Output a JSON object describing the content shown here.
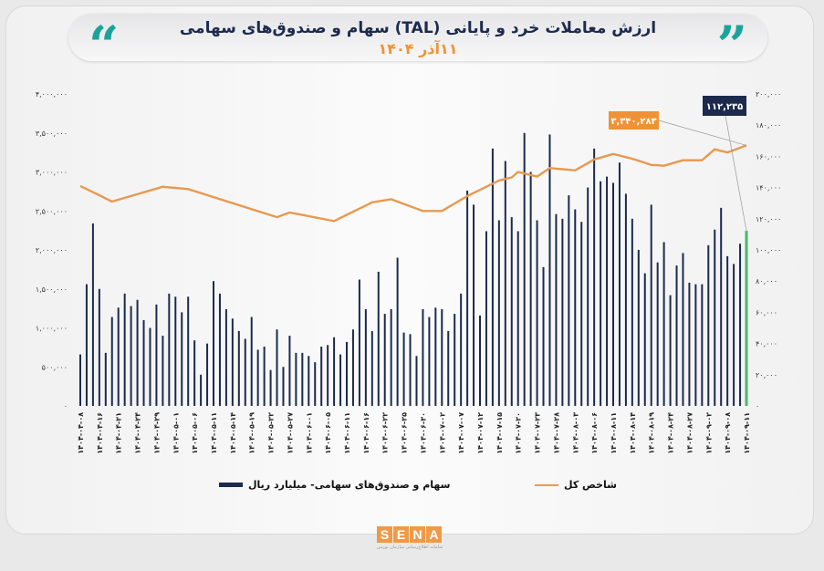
{
  "header": {
    "title": "ارزش معاملات خرد و پایانی (TAL) سهام و صندوق‌های سهامی",
    "subtitle": "۱۱آذر ۱۴۰۴",
    "quote_left": "“",
    "quote_right": "”"
  },
  "logo": {
    "letters": [
      "S",
      "E",
      "N",
      "A"
    ],
    "tagline": "سامانه اطلاع‌رسانی سازمان بورس"
  },
  "colors": {
    "bars": "#1c2a4d",
    "last_bar": "#4cb86a",
    "line": "#e8994f",
    "callout_line": "#ef9235",
    "callout_bar": "#1c2a4d"
  },
  "chart_data": {
    "type": "bar+line",
    "title": "ارزش معاملات خرد و پایانی (TAL) سهام و صندوق‌های سهامی",
    "left_axis": {
      "range": [
        0,
        4000000
      ],
      "ticks": [
        "۰",
        "۵۰۰,۰۰۰",
        "۱,۰۰۰,۰۰۰",
        "۱,۵۰۰,۰۰۰",
        "۲,۰۰۰,۰۰۰",
        "۲,۵۰۰,۰۰۰",
        "۳,۰۰۰,۰۰۰",
        "۳,۵۰۰,۰۰۰",
        "۴,۰۰۰,۰۰۰"
      ]
    },
    "right_axis": {
      "range": [
        0,
        200000
      ],
      "ticks": [
        "۰",
        "۲۰,۰۰۰",
        "۴۰,۰۰۰",
        "۶۰,۰۰۰",
        "۸۰,۰۰۰",
        "۱۰۰,۰۰۰",
        "۱۲۰,۰۰۰",
        "۱۴۰,۰۰۰",
        "۱۶۰,۰۰۰",
        "۱۸۰,۰۰۰",
        "۲۰۰,۰۰۰"
      ]
    },
    "x_labels": [
      "۱۴۰۴-۰۴-۰۸",
      "۱۴۰۴-۰۴-۱۶",
      "۱۴۰۴-۰۴-۲۱",
      "۱۴۰۴-۰۴-۲۴",
      "۱۴۰۴-۰۴-۲۹",
      "۱۴۰۴-۰۵-۰۱",
      "۱۴۰۴-۰۵-۰۶",
      "۱۴۰۴-۰۵-۱۱",
      "۱۴۰۴-۰۵-۱۴",
      "۱۴۰۴-۰۵-۱۹",
      "۱۴۰۴-۰۵-۲۲",
      "۱۴۰۴-۰۵-۲۷",
      "۱۴۰۴-۰۶-۰۱",
      "۱۴۰۴-۰۶-۰۵",
      "۱۴۰۴-۰۶-۱۱",
      "۱۴۰۴-۰۶-۱۶",
      "۱۴۰۴-۰۶-۲۲",
      "۱۴۰۴-۰۶-۲۵",
      "۱۴۰۴-۰۶-۳۰",
      "۱۴۰۴-۰۷-۰۲",
      "۱۴۰۴-۰۷-۰۷",
      "۱۴۰۴-۰۷-۱۲",
      "۱۴۰۴-۰۷-۱۵",
      "۱۴۰۴-۰۷-۲۰",
      "۱۴۰۴-۰۷-۲۳",
      "۱۴۰۴-۰۷-۲۸",
      "۱۴۰۴-۰۸-۰۳",
      "۱۴۰۴-۰۸-۰۶",
      "۱۴۰۴-۰۸-۱۱",
      "۱۴۰۴-۰۸-۱۴",
      "۱۴۰۴-۰۸-۱۹",
      "۱۴۰۴-۰۸-۲۴",
      "۱۴۰۴-۰۸-۲۷",
      "۱۴۰۴-۰۹-۰۲",
      "۱۴۰۴-۰۹-۰۸",
      "۱۴۰۴-۰۹-۱۱"
    ],
    "x_label_every": 3,
    "series": [
      {
        "name": "سهام و صندوق‌های سهامی - میلیارد ریال",
        "type": "bar",
        "axis": "right",
        "values": [
          33000,
          78000,
          117000,
          75000,
          34000,
          57000,
          63000,
          72000,
          64000,
          68000,
          55000,
          50000,
          65000,
          45000,
          72000,
          70000,
          60000,
          70000,
          42000,
          20000,
          40000,
          80000,
          72000,
          62000,
          56000,
          48000,
          43000,
          57000,
          36000,
          38000,
          23000,
          49000,
          25000,
          45000,
          34000,
          34000,
          32000,
          28000,
          38000,
          39000,
          44000,
          33000,
          41000,
          49000,
          81000,
          62000,
          48000,
          86000,
          59000,
          62000,
          95000,
          47000,
          46000,
          32000,
          62000,
          57000,
          63000,
          62000,
          48000,
          59000,
          72000,
          138000,
          129000,
          58000,
          112000,
          165000,
          119000,
          157000,
          121000,
          112000,
          175000,
          150000,
          119000,
          89000,
          174000,
          123000,
          120000,
          135000,
          126000,
          118000,
          140000,
          165000,
          144000,
          147000,
          143000,
          156000,
          136000,
          120000,
          100000,
          85000,
          129000,
          92000,
          105000,
          71000,
          90000,
          98000,
          79000,
          78000,
          78000,
          103000,
          113000,
          127000,
          96000,
          91000,
          104000,
          112235
        ]
      },
      {
        "name": "شاخص کل",
        "type": "line",
        "axis": "left",
        "points": [
          [
            0,
            2820000
          ],
          [
            5,
            2620000
          ],
          [
            13,
            2810000
          ],
          [
            17,
            2780000
          ],
          [
            31,
            2420000
          ],
          [
            33,
            2480000
          ],
          [
            40,
            2370000
          ],
          [
            46,
            2610000
          ],
          [
            49,
            2650000
          ],
          [
            54,
            2500000
          ],
          [
            57,
            2500000
          ],
          [
            61,
            2690000
          ],
          [
            66,
            2890000
          ],
          [
            68,
            2930000
          ],
          [
            69,
            3000000
          ],
          [
            72,
            2940000
          ],
          [
            74,
            3050000
          ],
          [
            78,
            3020000
          ],
          [
            81,
            3160000
          ],
          [
            84,
            3230000
          ],
          [
            87,
            3170000
          ],
          [
            90,
            3090000
          ],
          [
            92,
            3080000
          ],
          [
            95,
            3150000
          ],
          [
            98,
            3150000
          ],
          [
            100,
            3290000
          ],
          [
            102,
            3250000
          ],
          [
            105,
            3340283
          ]
        ]
      }
    ],
    "callouts": {
      "line_last": "۳,۳۴۰,۲۸۳",
      "bar_last": "۱۱۲,۲۳۵"
    },
    "legend": {
      "bar": "سهام و صندوق‌های سهامی-  میلیارد ریال",
      "line": "شاخص کل",
      "placement": "bottom"
    },
    "grid": false
  }
}
